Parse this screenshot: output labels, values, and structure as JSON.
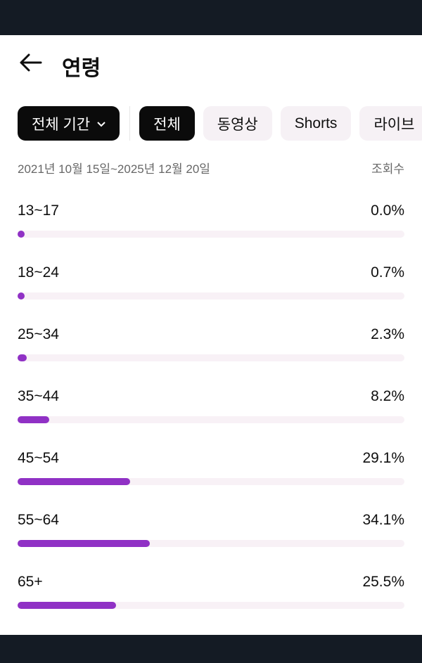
{
  "header": {
    "title": "연령",
    "back_icon": "arrow-left-icon"
  },
  "filters": {
    "period_label": "전체 기간",
    "chips": [
      "전체",
      "동영상",
      "Shorts",
      "라이브"
    ],
    "selected": "전체"
  },
  "meta": {
    "date_range": "2021년 10월 15일~2025년 12월 20일",
    "metric": "조회수"
  },
  "accent_color": "#9031c5",
  "rows": [
    {
      "label": "13~17",
      "value": "0.0%",
      "percent": 0.0
    },
    {
      "label": "18~24",
      "value": "0.7%",
      "percent": 0.7
    },
    {
      "label": "25~34",
      "value": "2.3%",
      "percent": 2.3
    },
    {
      "label": "35~44",
      "value": "8.2%",
      "percent": 8.2
    },
    {
      "label": "45~54",
      "value": "29.1%",
      "percent": 29.1
    },
    {
      "label": "55~64",
      "value": "34.1%",
      "percent": 34.1
    },
    {
      "label": "65+",
      "value": "25.5%",
      "percent": 25.5
    }
  ]
}
